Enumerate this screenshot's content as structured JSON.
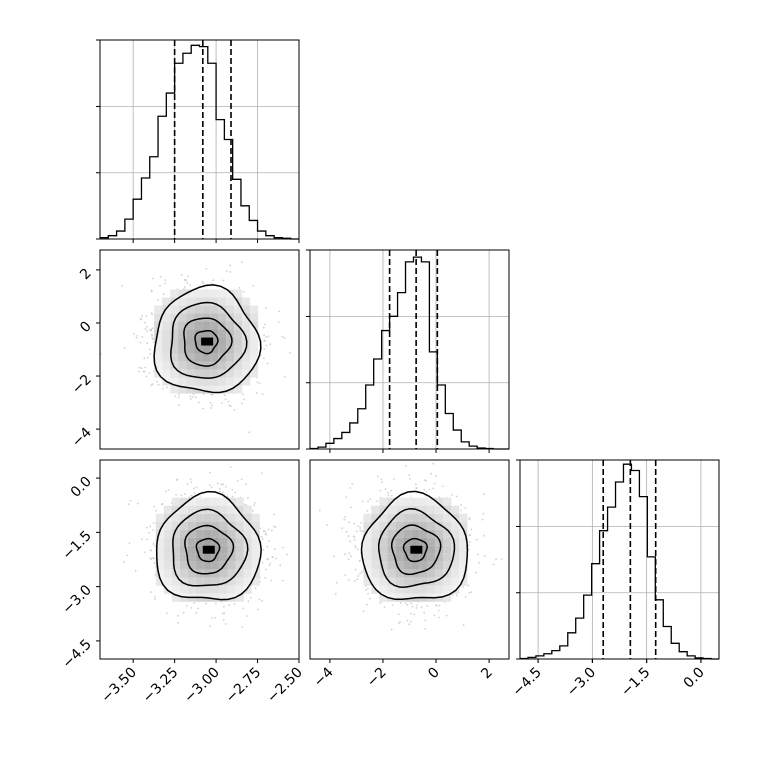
{
  "chart_data": [
    {
      "type": "histogram",
      "panel": "marginal-1",
      "xlim": [
        -3.7,
        -2.5
      ],
      "bins": [
        -3.7,
        -3.65,
        -3.6,
        -3.55,
        -3.5,
        -3.45,
        -3.4,
        -3.35,
        -3.3,
        -3.25,
        -3.2,
        -3.15,
        -3.1,
        -3.05,
        -3.0,
        -2.95,
        -2.9,
        -2.85,
        -2.8,
        -2.75,
        -2.7,
        -2.65,
        -2.6,
        -2.55,
        -2.5
      ],
      "counts": [
        2,
        5,
        12,
        30,
        60,
        92,
        124,
        185,
        220,
        265,
        280,
        292,
        290,
        265,
        180,
        150,
        90,
        50,
        28,
        12,
        5,
        2,
        1,
        0
      ],
      "quantiles": [
        -3.25,
        -3.08,
        -2.91
      ],
      "ylim": [
        0,
        300
      ]
    },
    {
      "type": "histogram",
      "panel": "marginal-2",
      "xlim": [
        -4.75,
        2.75
      ],
      "bins": [
        -4.75,
        -4.45,
        -4.15,
        -3.85,
        -3.55,
        -3.25,
        -2.95,
        -2.65,
        -2.35,
        -2.05,
        -1.75,
        -1.45,
        -1.15,
        -0.85,
        -0.55,
        -0.25,
        0.05,
        0.35,
        0.65,
        0.95,
        1.25,
        1.55,
        1.85,
        2.15,
        2.45,
        2.75
      ],
      "counts": [
        1,
        4,
        12,
        22,
        35,
        55,
        85,
        135,
        190,
        250,
        280,
        330,
        395,
        405,
        395,
        205,
        135,
        75,
        40,
        15,
        6,
        2,
        1,
        0,
        0
      ],
      "quantiles": [
        -1.75,
        -0.75,
        0.05
      ],
      "ylim": [
        0,
        420
      ]
    },
    {
      "type": "histogram",
      "panel": "marginal-3",
      "xlim": [
        -5.0,
        0.5
      ],
      "bins": [
        -5.0,
        -4.78,
        -4.56,
        -4.34,
        -4.12,
        -3.9,
        -3.68,
        -3.46,
        -3.24,
        -3.02,
        -2.8,
        -2.58,
        -2.36,
        -2.14,
        -1.92,
        -1.7,
        -1.48,
        -1.26,
        -1.04,
        -0.82,
        -0.6,
        -0.38,
        -0.16,
        0.06,
        0.28,
        0.5
      ],
      "counts": [
        1,
        3,
        6,
        10,
        16,
        25,
        50,
        78,
        122,
        182,
        245,
        290,
        338,
        372,
        360,
        310,
        195,
        113,
        62,
        30,
        14,
        6,
        2,
        1,
        0
      ],
      "quantiles": [
        -2.7,
        -1.95,
        -1.25
      ],
      "ylim": [
        0,
        380
      ]
    },
    {
      "type": "scatter-contour",
      "panel": "joint-2-1",
      "xlim": [
        -3.7,
        -2.5
      ],
      "ylim": [
        -4.75,
        2.75
      ],
      "center": [
        -3.06,
        -0.7
      ],
      "spread": [
        0.15,
        0.95
      ]
    },
    {
      "type": "scatter-contour",
      "panel": "joint-3-1",
      "xlim": [
        -3.7,
        -2.5
      ],
      "ylim": [
        -5.0,
        0.5
      ],
      "center": [
        -3.05,
        -1.98
      ],
      "spread": [
        0.15,
        0.7
      ]
    },
    {
      "type": "scatter-contour",
      "panel": "joint-3-2",
      "xlim": [
        -4.75,
        2.75
      ],
      "ylim": [
        -5.0,
        0.5
      ],
      "center": [
        -0.78,
        -1.98
      ],
      "spread": [
        0.95,
        0.7
      ]
    }
  ],
  "x_ticks_col1": [
    "−3.50",
    "−3.25",
    "−3.00",
    "−2.75",
    "−2.50"
  ],
  "x_ticks_col1_values": [
    -3.5,
    -3.25,
    -3.0,
    -2.75,
    -2.5
  ],
  "x_ticks_col2": [
    "−4",
    "−2",
    "0",
    "2"
  ],
  "x_ticks_col2_values": [
    -4,
    -2,
    0,
    2
  ],
  "x_ticks_col3": [
    "−4.5",
    "−3.0",
    "−1.5",
    "0.0"
  ],
  "x_ticks_col3_values": [
    -4.5,
    -3.0,
    -1.5,
    0.0
  ],
  "y_ticks_row2": [
    "2",
    "0",
    "−2",
    "−4"
  ],
  "y_ticks_row2_values": [
    2,
    0,
    -2,
    -4
  ],
  "y_ticks_row3": [
    "0.0",
    "−1.5",
    "−3.0",
    "−4.5"
  ],
  "y_ticks_row3_values": [
    0.0,
    -1.5,
    -3.0,
    -4.5
  ],
  "colors": {
    "line": "#000000",
    "grid": "#b0b0b0",
    "points": "#bdbdbd"
  }
}
